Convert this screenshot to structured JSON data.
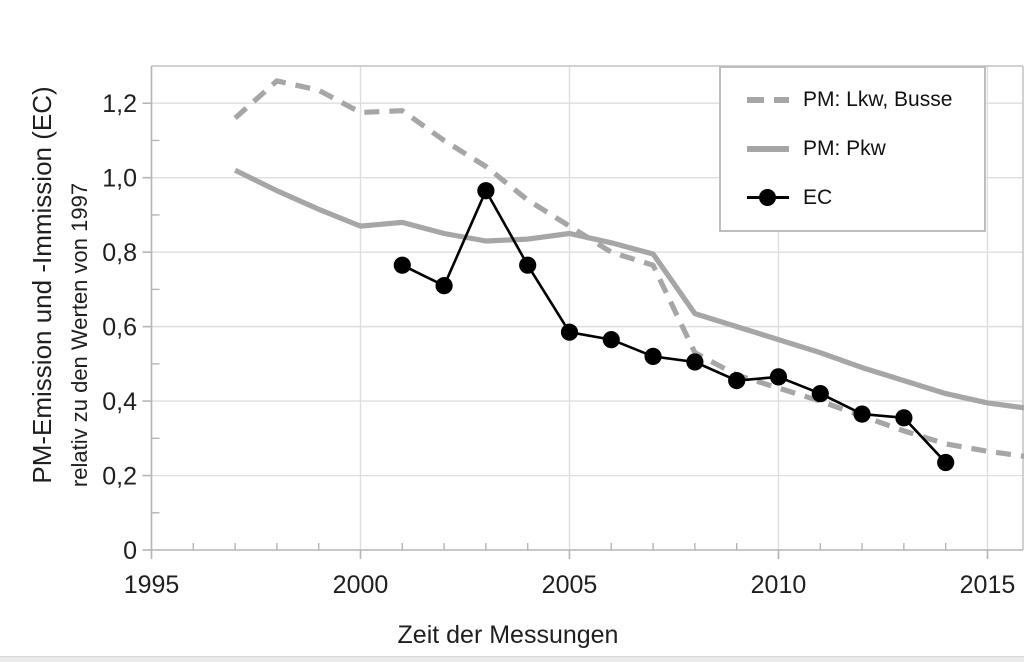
{
  "figure": {
    "y_axis_title_line1": "PM-Emission und -Immission (EC)",
    "y_axis_title_line2": "relativ zu den Werten von 1997",
    "x_axis_title": "Zeit der Messungen"
  },
  "legend": {
    "position": "top-right",
    "items": [
      {
        "label": "PM: Lkw, Busse",
        "swatch": "dashed-gray-line"
      },
      {
        "label": "PM: Pkw",
        "swatch": "solid-gray-line"
      },
      {
        "label": "EC",
        "swatch": "black-line-with-dot"
      }
    ]
  },
  "colors": {
    "gray_series": "#a6a6a6",
    "black_series": "#000000",
    "gridline": "#dedede",
    "axis_line": "#b5b5b5",
    "plot_border": "#c2c2c2",
    "text": "#1f1f1f",
    "legend_border": "#bdbdbd"
  },
  "chart_data": {
    "type": "line",
    "title": "",
    "xlabel": "Zeit der Messungen",
    "ylabel": "PM-Emission und -Immission (EC) relativ zu den Werten von 1997",
    "xlim": [
      1995,
      2015.85
    ],
    "ylim": [
      0,
      1.3
    ],
    "grid": true,
    "legend_position": "top-right",
    "x_ticks_major": [
      1995,
      2000,
      2005,
      2010,
      2015
    ],
    "x_tick_labels": [
      "1995",
      "2000",
      "2005",
      "2010",
      "2015"
    ],
    "x_ticks_minor": [
      1996,
      1997,
      1998,
      1999,
      2001,
      2002,
      2003,
      2004,
      2006,
      2007,
      2008,
      2009,
      2011,
      2012,
      2013,
      2014
    ],
    "y_ticks_major": [
      0,
      0.2,
      0.4,
      0.6,
      0.8,
      1.0,
      1.2
    ],
    "y_tick_labels": [
      "0",
      "0,2",
      "0,4",
      "0,6",
      "0,8",
      "1,0",
      "1,2"
    ],
    "y_ticks_minor": [
      0.1,
      0.3,
      0.5,
      0.7,
      0.9,
      1.1
    ],
    "series": [
      {
        "name": "PM: Lkw, Busse",
        "style": "dashed",
        "color": "#a6a6a6",
        "markers": false,
        "x": [
          1997,
          1998,
          1999,
          2000,
          2001,
          2002,
          2003,
          2004,
          2005,
          2006,
          2007,
          2008,
          2009,
          2010,
          2011,
          2012,
          2013,
          2014,
          2015,
          2016
        ],
        "values": [
          1.16,
          1.26,
          1.235,
          1.175,
          1.18,
          1.1,
          1.03,
          0.94,
          0.87,
          0.8,
          0.765,
          0.53,
          0.47,
          0.435,
          0.4,
          0.36,
          0.32,
          0.285,
          0.265,
          0.25
        ]
      },
      {
        "name": "PM: Pkw",
        "style": "solid",
        "color": "#a6a6a6",
        "markers": false,
        "x": [
          1997,
          1998,
          1999,
          2000,
          2001,
          2002,
          2003,
          2004,
          2005,
          2006,
          2007,
          2008,
          2009,
          2010,
          2011,
          2012,
          2013,
          2014,
          2015,
          2016
        ],
        "values": [
          1.02,
          0.965,
          0.915,
          0.87,
          0.88,
          0.85,
          0.83,
          0.835,
          0.85,
          0.825,
          0.795,
          0.635,
          0.6,
          0.565,
          0.53,
          0.49,
          0.455,
          0.42,
          0.395,
          0.38
        ]
      },
      {
        "name": "EC",
        "style": "solid",
        "color": "#000000",
        "markers": true,
        "x": [
          2001,
          2002,
          2003,
          2004,
          2005,
          2006,
          2007,
          2008,
          2009,
          2010,
          2011,
          2012,
          2013,
          2014
        ],
        "values": [
          0.765,
          0.71,
          0.965,
          0.765,
          0.585,
          0.565,
          0.52,
          0.505,
          0.455,
          0.465,
          0.42,
          0.365,
          0.355,
          0.235
        ]
      }
    ]
  }
}
